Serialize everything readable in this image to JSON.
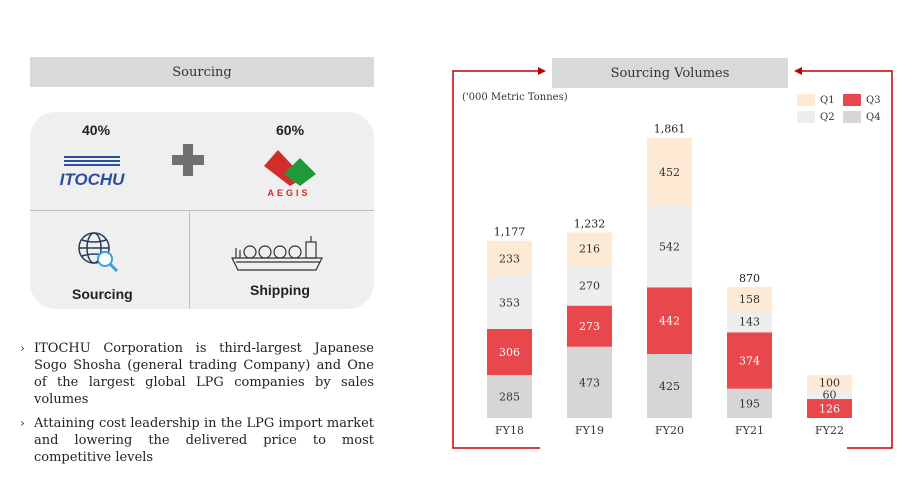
{
  "left_panel": {
    "header": "Sourcing",
    "itochu_pct": "40%",
    "aegis_pct": "60%",
    "itochu_logo_text": "ITOCHU",
    "aegis_logo_text": "AEGIS",
    "caption_sourcing": "Sourcing",
    "caption_shipping": "Shipping",
    "bullets": [
      "ITOCHU Corporation is third-largest Japanese Sogo Shosha (general trading Company) and One of the largest global LPG companies by sales volumes",
      "Attaining cost leadership in the LPG import market and lowering the delivered price to most competitive levels"
    ],
    "bullet_mark": "›"
  },
  "right_panel": {
    "header": "Sourcing Volumes",
    "unit": "('000 Metric Tonnes)"
  },
  "colors": {
    "q1": "#fde9d4",
    "q2": "#eeeeee",
    "q3": "#e8474c",
    "q4": "#d6d6d6",
    "frame": "#c00000"
  },
  "chart_data": {
    "type": "bar",
    "stacked": true,
    "title": "Sourcing Volumes",
    "ylabel": "('000 Metric Tonnes)",
    "categories": [
      "FY18",
      "FY19",
      "FY20",
      "FY21",
      "FY22"
    ],
    "series": [
      {
        "name": "Q4",
        "values": [
          285,
          473,
          425,
          195,
          null
        ]
      },
      {
        "name": "Q3",
        "values": [
          306,
          273,
          442,
          374,
          126
        ]
      },
      {
        "name": "Q2",
        "values": [
          353,
          270,
          542,
          143,
          60
        ]
      },
      {
        "name": "Q1",
        "values": [
          233,
          216,
          452,
          158,
          100
        ]
      }
    ],
    "totals": [
      "1,177",
      "1,232",
      "1,861",
      "870",
      null
    ],
    "legend": [
      "Q1",
      "Q3",
      "Q2",
      "Q4"
    ],
    "legend_position": "top-right",
    "ylim": [
      0,
      2000
    ]
  }
}
